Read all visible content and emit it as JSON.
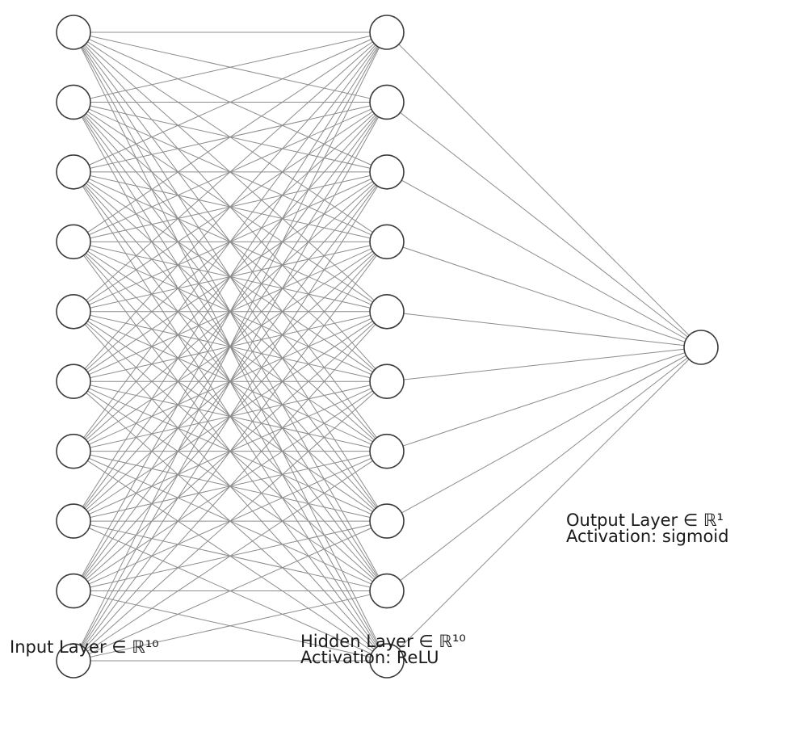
{
  "network": {
    "layers": [
      {
        "id": "input",
        "neurons": 10,
        "label": "Input Layer ∈ ℝ¹⁰",
        "activation_text": ""
      },
      {
        "id": "hidden",
        "neurons": 10,
        "label": "Hidden Layer ∈ ℝ¹⁰",
        "activation_text": "Activation: ReLU"
      },
      {
        "id": "output",
        "neurons": 1,
        "label": "Output Layer ∈ ℝ¹",
        "activation_text": "Activation: sigmoid"
      }
    ],
    "connectivity": "fully-connected"
  },
  "colors": {
    "edge": "#8c8c8c",
    "node_stroke": "#3a3a3a",
    "node_fill": "#ffffff",
    "text": "#1a1a1a"
  }
}
